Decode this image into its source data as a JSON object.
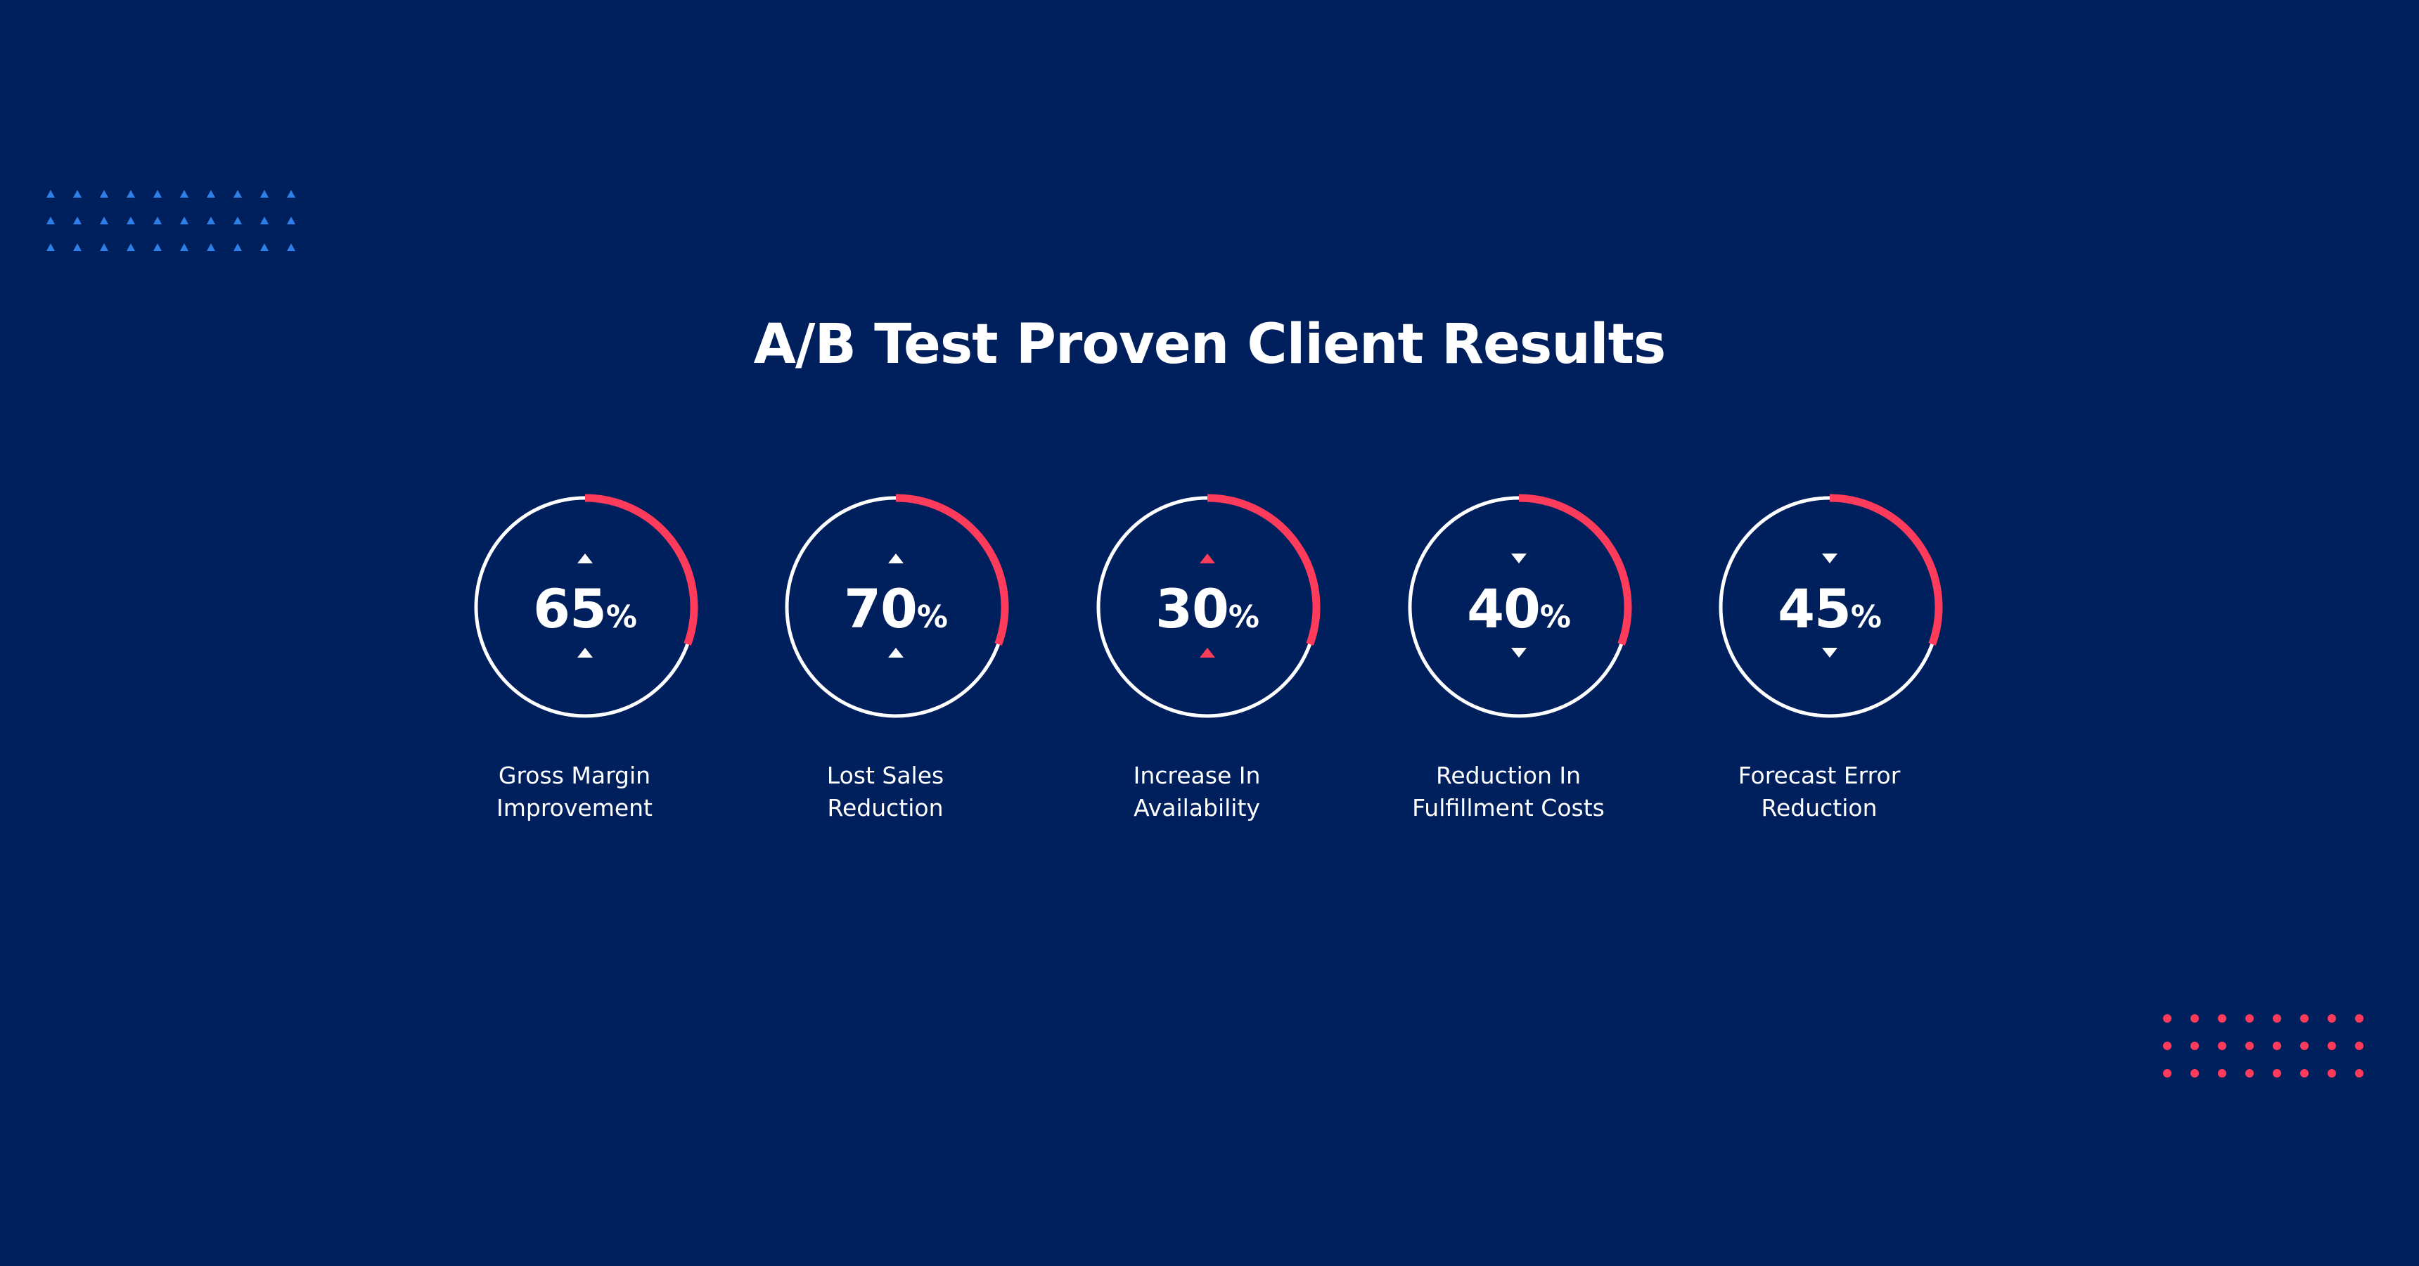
{
  "page": {
    "title": "A/B Test Proven Client Results"
  },
  "colors": {
    "background": "#001f5d",
    "accent": "#ff3b5c",
    "ring": "#ffffff",
    "text": "#ffffff",
    "decor_triangles": "#2f7fe8",
    "decor_dots": "#ff3b5c"
  },
  "metrics": [
    {
      "value": "65",
      "unit": "%",
      "label_line1": "Gross Margin",
      "label_line2": "Improvement",
      "fraction": 0.65,
      "arrow_icons": "up-arrow-icon",
      "arrow_color": "#ffffff"
    },
    {
      "value": "70",
      "unit": "%",
      "label_line1": "Lost Sales",
      "label_line2": "Reduction",
      "fraction": 0.7,
      "arrow_icons": "up-arrow-icon",
      "arrow_color": "#ffffff"
    },
    {
      "value": "30",
      "unit": "%",
      "label_line1": "Increase In",
      "label_line2": "Availability",
      "fraction": 0.3,
      "arrow_icons": "up-arrow-icon",
      "arrow_color": "#ff3b5c"
    },
    {
      "value": "40",
      "unit": "%",
      "label_line1": "Reduction In",
      "label_line2": "Fulfillment Costs",
      "fraction": 0.4,
      "arrow_icons": "down-arrow-icon",
      "arrow_color": "#ffffff"
    },
    {
      "value": "45",
      "unit": "%",
      "label_line1": "Forecast Error",
      "label_line2": "Reduction",
      "fraction": 0.45,
      "arrow_icons": "down-arrow-icon",
      "arrow_color": "#ffffff"
    }
  ]
}
